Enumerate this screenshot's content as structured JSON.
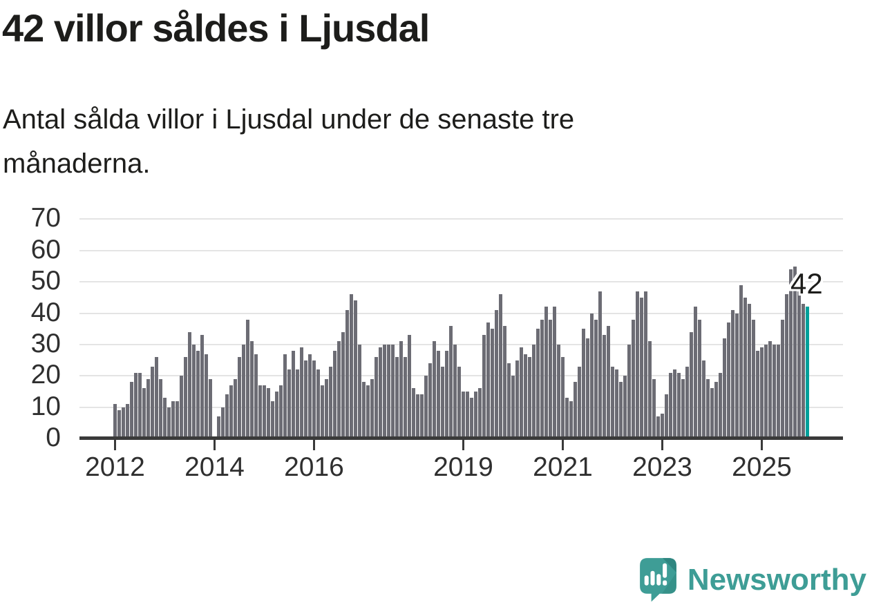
{
  "header": {
    "title": "42 villor såldes i Ljusdal",
    "subtitle": "Antal sålda villor i Ljusdal under de senaste tre månaderna."
  },
  "chart_data": {
    "type": "bar",
    "title": "42 villor såldes i Ljusdal",
    "subtitle": "Antal sålda villor i Ljusdal under de senaste tre månaderna.",
    "x_monthly_from": "2012-01",
    "values": [
      11,
      9,
      10,
      11,
      18,
      21,
      21,
      16,
      19,
      23,
      26,
      19,
      13,
      10,
      12,
      12,
      20,
      26,
      34,
      30,
      28,
      33,
      27,
      19,
      0,
      7,
      10,
      14,
      17,
      19,
      26,
      30,
      38,
      31,
      27,
      17,
      17,
      16,
      12,
      15,
      17,
      27,
      22,
      28,
      22,
      29,
      25,
      27,
      25,
      22,
      17,
      19,
      23,
      28,
      31,
      34,
      41,
      46,
      44,
      30,
      18,
      17,
      19,
      26,
      29,
      30,
      30,
      30,
      26,
      31,
      26,
      33,
      16,
      14,
      14,
      20,
      24,
      31,
      28,
      23,
      28,
      36,
      30,
      23,
      15,
      15,
      13,
      15,
      16,
      33,
      37,
      35,
      41,
      46,
      36,
      24,
      20,
      25,
      29,
      27,
      26,
      30,
      35,
      38,
      42,
      38,
      42,
      30,
      26,
      13,
      12,
      18,
      23,
      35,
      32,
      40,
      38,
      47,
      33,
      36,
      23,
      22,
      18,
      20,
      30,
      38,
      47,
      45,
      47,
      31,
      19,
      7,
      8,
      14,
      21,
      22,
      21,
      19,
      23,
      34,
      42,
      38,
      25,
      19,
      16,
      18,
      21,
      32,
      37,
      41,
      40,
      49,
      45,
      43,
      38,
      28,
      29,
      30,
      31,
      30,
      30,
      38,
      46,
      54,
      55,
      47,
      43,
      42
    ],
    "highlight_last": true,
    "annotation_label": "42",
    "ylim": [
      0,
      70
    ],
    "yticks": [
      0,
      10,
      20,
      30,
      40,
      50,
      60,
      70
    ],
    "xticks": [
      {
        "label": "2012",
        "month_index": 0
      },
      {
        "label": "2014",
        "month_index": 24
      },
      {
        "label": "2016",
        "month_index": 48
      },
      {
        "label": "2019",
        "month_index": 84
      },
      {
        "label": "2021",
        "month_index": 108
      },
      {
        "label": "2023",
        "month_index": 132
      },
      {
        "label": "2025",
        "month_index": 156
      }
    ],
    "grid": true,
    "legend": "none",
    "bar_color": "#6c6c74",
    "highlight_color": "#00a09a",
    "axis_color": "#3a3a3a",
    "gridline_color": "#e4e4e4"
  },
  "footer": {
    "brand": "Newsworthy",
    "logo_icon": "newsworthy-speech-bubble-chart-icon",
    "brand_color": "#3e9d96"
  }
}
